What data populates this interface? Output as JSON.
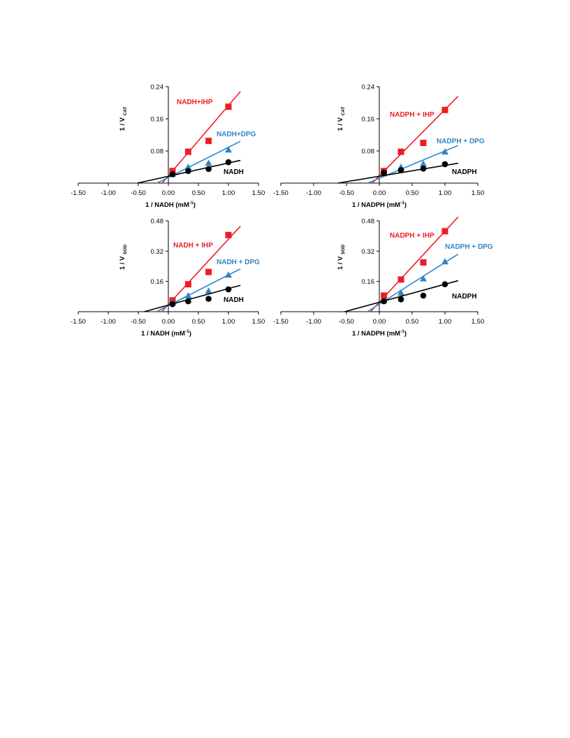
{
  "chart_data": [
    {
      "type": "scatter",
      "panel": "top-left",
      "xlabel": "1 / NADH (mM",
      "xlabel_sup": "-1",
      "xlabel_tail": ")",
      "ylabel": "1 / V",
      "ylabel_sub": "CAT",
      "xlim": [
        -1.5,
        1.5
      ],
      "ylim": [
        0,
        0.24
      ],
      "xticks": [
        "-1.50",
        "-1.00",
        "-0.50",
        "0.00",
        "0.50",
        "1.00",
        "1.50"
      ],
      "yticks": [
        "0.08",
        "0.16",
        "0.24"
      ],
      "series": [
        {
          "name": "NADH+IHP",
          "color": "#ee1c24",
          "marker": "square",
          "x": [
            0.07,
            0.33,
            0.67,
            1.0
          ],
          "y": [
            0.03,
            0.078,
            0.105,
            0.19
          ],
          "fit": [
            0.175,
            0.018
          ]
        },
        {
          "name": "NADH+DPG",
          "color": "#2e86c8",
          "marker": "triangle",
          "x": [
            0.07,
            0.33,
            0.67,
            1.0
          ],
          "y": [
            0.022,
            0.04,
            0.05,
            0.083
          ],
          "fit": [
            0.075,
            0.014
          ]
        },
        {
          "name": "NADH",
          "color": "#000000",
          "marker": "circle",
          "x": [
            0.07,
            0.33,
            0.67,
            1.0
          ],
          "y": [
            0.022,
            0.03,
            0.035,
            0.052
          ],
          "fit": [
            0.033,
            0.017
          ]
        }
      ]
    },
    {
      "type": "scatter",
      "panel": "top-right",
      "xlabel": "1 / NADPH (mM",
      "xlabel_sup": "-1",
      "xlabel_tail": ")",
      "ylabel": "1 / V",
      "ylabel_sub": "CAT",
      "xlim": [
        -1.5,
        1.5
      ],
      "ylim": [
        0,
        0.24
      ],
      "xticks": [
        "-1.50",
        "-1.00",
        "-0.50",
        "0.00",
        "0.50",
        "1.00",
        "1.50"
      ],
      "yticks": [
        "0.08",
        "0.16",
        "0.24"
      ],
      "series": [
        {
          "name": "NADPH + IHP",
          "color": "#ee1c24",
          "marker": "square",
          "x": [
            0.07,
            0.33,
            0.67,
            1.0
          ],
          "y": [
            0.03,
            0.078,
            0.1,
            0.182
          ],
          "fit": [
            0.165,
            0.018
          ]
        },
        {
          "name": "NADPH + DPG",
          "color": "#2e86c8",
          "marker": "triangle",
          "x": [
            0.07,
            0.33,
            0.67,
            1.0
          ],
          "y": [
            0.024,
            0.04,
            0.048,
            0.078
          ],
          "fit": [
            0.068,
            0.012
          ]
        },
        {
          "name": "NADPH",
          "color": "#000000",
          "marker": "circle",
          "x": [
            0.07,
            0.33,
            0.67,
            1.0
          ],
          "y": [
            0.026,
            0.032,
            0.036,
            0.047
          ],
          "fit": [
            0.027,
            0.017
          ]
        }
      ]
    },
    {
      "type": "scatter",
      "panel": "bottom-left",
      "xlabel": "1 / NADH (mM",
      "xlabel_sup": "-1",
      "xlabel_tail": ")",
      "ylabel": "1 / V",
      "ylabel_sub": "SOD",
      "xlim": [
        -1.5,
        1.5
      ],
      "ylim": [
        0,
        0.48
      ],
      "xticks": [
        "-1.50",
        "-1.00",
        "-0.50",
        "0.00",
        "0.50",
        "1.00",
        "1.50"
      ],
      "yticks": [
        "0.16",
        "0.32",
        "0.48"
      ],
      "series": [
        {
          "name": "NADH + IHP",
          "color": "#ee1c24",
          "marker": "square",
          "x": [
            0.07,
            0.33,
            0.67,
            1.0
          ],
          "y": [
            0.06,
            0.145,
            0.21,
            0.405
          ],
          "fit": [
            0.345,
            0.038
          ]
        },
        {
          "name": "NADH + DPG",
          "color": "#2e86c8",
          "marker": "triangle",
          "x": [
            0.07,
            0.33,
            0.67,
            1.0
          ],
          "y": [
            0.05,
            0.085,
            0.11,
            0.195
          ],
          "fit": [
            0.162,
            0.032
          ]
        },
        {
          "name": "NADH",
          "color": "#000000",
          "marker": "circle",
          "x": [
            0.07,
            0.33,
            0.67,
            1.0
          ],
          "y": [
            0.04,
            0.055,
            0.068,
            0.118
          ],
          "fit": [
            0.087,
            0.035
          ]
        }
      ]
    },
    {
      "type": "scatter",
      "panel": "bottom-right",
      "xlabel": "1 / NADPH (mM",
      "xlabel_sup": "-1",
      "xlabel_tail": ")",
      "ylabel": "1 / V",
      "ylabel_sub": "SOD",
      "xlim": [
        -1.5,
        1.5
      ],
      "ylim": [
        0,
        0.48
      ],
      "xticks": [
        "-1.50",
        "-1.00",
        "-0.50",
        "0.00",
        "0.50",
        "1.00",
        "1.50"
      ],
      "yticks": [
        "0.16",
        "0.32",
        "0.48"
      ],
      "series": [
        {
          "name": "NADPH + IHP",
          "color": "#ee1c24",
          "marker": "square",
          "x": [
            0.07,
            0.33,
            0.67,
            1.0
          ],
          "y": [
            0.085,
            0.17,
            0.26,
            0.425
          ],
          "fit": [
            0.375,
            0.05
          ]
        },
        {
          "name": "NADPH + DPG",
          "color": "#2e86c8",
          "marker": "triangle",
          "x": [
            0.07,
            0.33,
            0.67,
            1.0
          ],
          "y": [
            0.06,
            0.1,
            0.175,
            0.265
          ],
          "fit": [
            0.22,
            0.04
          ]
        },
        {
          "name": "NADPH",
          "color": "#000000",
          "marker": "circle",
          "x": [
            0.07,
            0.33,
            0.67,
            1.0
          ],
          "y": [
            0.055,
            0.065,
            0.085,
            0.145
          ],
          "fit": [
            0.095,
            0.05
          ]
        }
      ]
    }
  ]
}
